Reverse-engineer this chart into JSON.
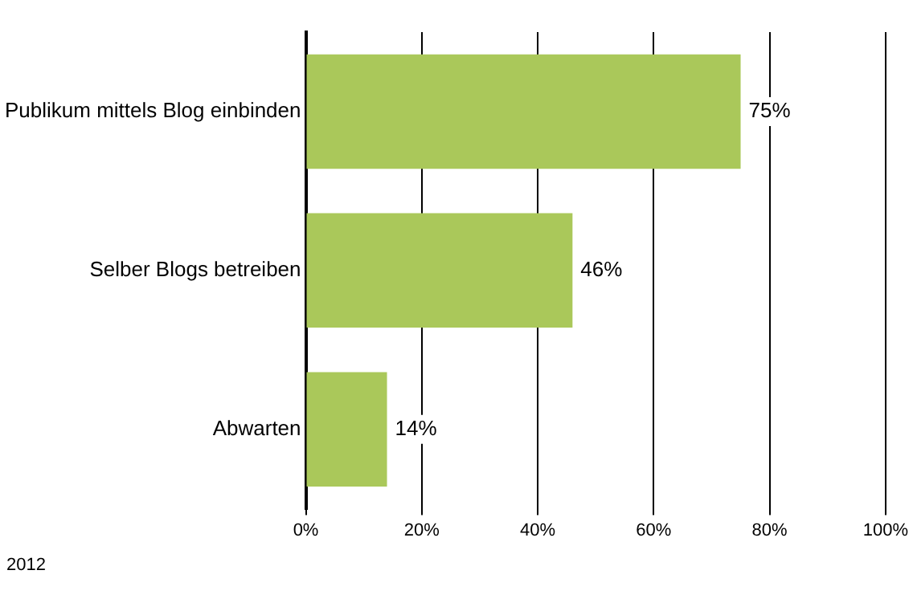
{
  "chart_data": {
    "type": "bar",
    "orientation": "horizontal",
    "categories": [
      "Publikum mittels Blog einbinden",
      "Selber Blogs betreiben",
      "Abwarten"
    ],
    "values": [
      75,
      46,
      14
    ],
    "color": "#aac85a",
    "value_labels": [
      "75%",
      "46%",
      "14%"
    ],
    "xlim": [
      0,
      100
    ],
    "xticks": [
      {
        "value": 0,
        "label": "0%"
      },
      {
        "value": 20,
        "label": "20%"
      },
      {
        "value": 40,
        "label": "40%"
      },
      {
        "value": 60,
        "label": "60%"
      },
      {
        "value": 80,
        "label": "80%"
      },
      {
        "value": 100,
        "label": "100%"
      }
    ],
    "grid": "x",
    "legend": false,
    "annotations": [
      "2012"
    ]
  }
}
